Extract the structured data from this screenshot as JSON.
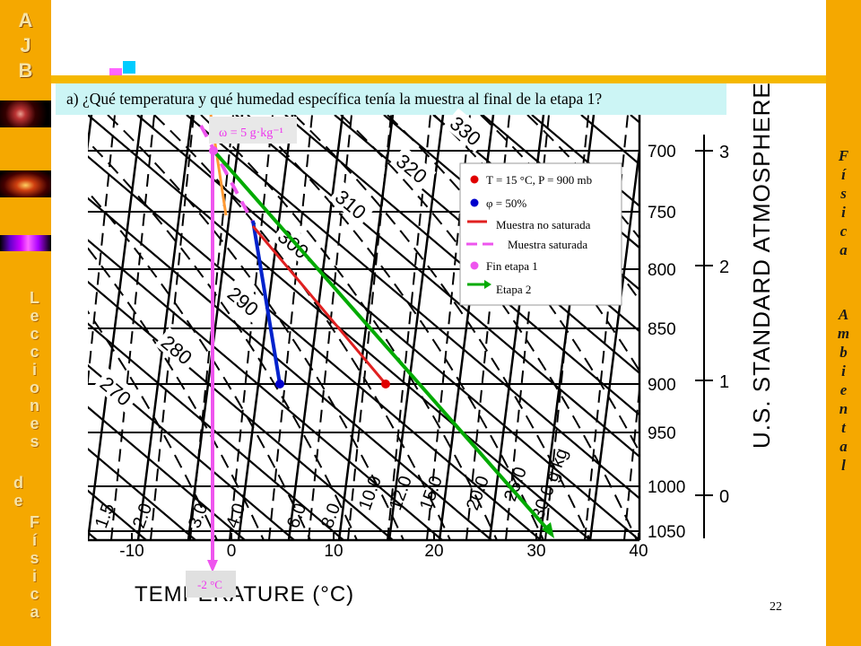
{
  "sidebar": {
    "logo": [
      "A",
      "J",
      "B"
    ],
    "title_letters": [
      "L",
      "e",
      "c",
      "c",
      "i",
      "o",
      "n",
      "e",
      "s",
      "d",
      "e",
      "F",
      "í",
      "s",
      "i",
      "c",
      "a"
    ]
  },
  "right_sidebar": {
    "letters": [
      "F",
      "í",
      "s",
      "i",
      "c",
      "a",
      "A",
      "m",
      "b",
      "i",
      "e",
      "n",
      "t",
      "a",
      "l"
    ]
  },
  "question": "a) ¿Qué temperatura y qué humedad específica tenía la muestra al final de la etapa 1?",
  "page_number": "22",
  "diagram": {
    "pressure_levels": [
      "700",
      "750",
      "800",
      "850",
      "900",
      "950",
      "1000",
      "1050"
    ],
    "temperature_ticks": [
      "-10",
      "0",
      "10",
      "20",
      "30",
      "40"
    ],
    "xlabel": "TEMPERATURE (°C)",
    "altitude_ticks": [
      "3",
      "2",
      "1",
      "0"
    ],
    "right_label": "U.S. STANDARD ATMOSPHERE",
    "theta_labels": [
      "270",
      "280",
      "290",
      "300",
      "310",
      "320",
      "330"
    ],
    "mixing_labels": [
      "1.5",
      "2.0",
      "3.0",
      "4.0",
      "6.0",
      "8.0",
      "10.0",
      "12.0",
      "15.0",
      "20.0",
      "25.0",
      "30.0 g/kg"
    ],
    "omega_label": "ω = 5 g·kg⁻¹",
    "temp_label": "-2 °C",
    "legend": [
      {
        "symbol": "red-dot",
        "text": "T = 15 °C, P = 900 mb",
        "color": "#e00000"
      },
      {
        "symbol": "blue-dot",
        "text": "φ = 50%",
        "color": "#0000cc"
      },
      {
        "symbol": "red-line",
        "text": "Muestra no saturada",
        "color": "#e02020"
      },
      {
        "symbol": "pink-dash",
        "text": "Muestra saturada",
        "color": "#ee55ee"
      },
      {
        "symbol": "pink-dot",
        "text": "Fin etapa 1",
        "color": "#ee55ee"
      },
      {
        "symbol": "green-arrow",
        "text": "Etapa 2",
        "color": "#00aa00"
      }
    ]
  }
}
